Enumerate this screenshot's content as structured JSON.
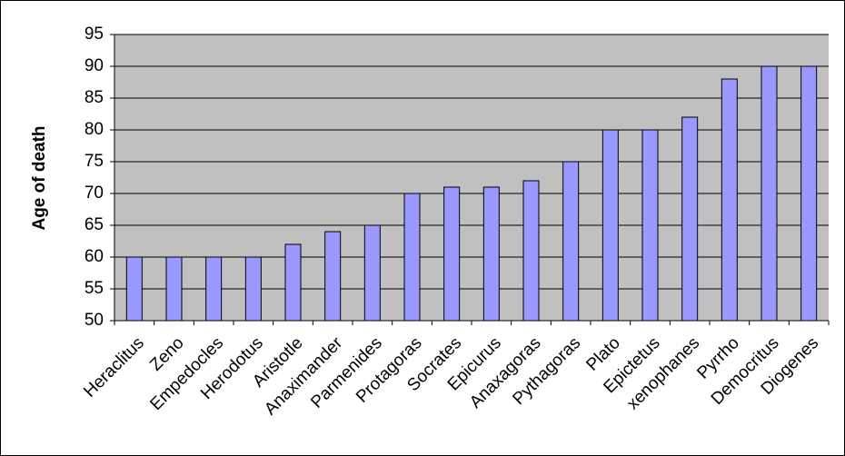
{
  "chart_data": {
    "type": "bar",
    "y_label": "Age of death",
    "categories": [
      "Heraclitus",
      "Zeno",
      "Empedocles",
      "Herodotus",
      "Aristotle",
      "Anaximander",
      "Parmenides",
      "Protagoras",
      "Socrates",
      "Epicurus",
      "Anaxagoras",
      "Pythagoras",
      "Plato",
      "Epictetus",
      "xenophanes",
      "Pyrrho",
      "Democritus",
      "Diogenes"
    ],
    "values": [
      60,
      60,
      60,
      60,
      62,
      64,
      65,
      70,
      71,
      71,
      72,
      75,
      80,
      80,
      82,
      88,
      90,
      90
    ],
    "color": "#9999ff",
    "ylim": [
      50,
      95
    ],
    "yticks": [
      50,
      55,
      60,
      65,
      70,
      75,
      80,
      85,
      90,
      95
    ],
    "grid": true
  }
}
